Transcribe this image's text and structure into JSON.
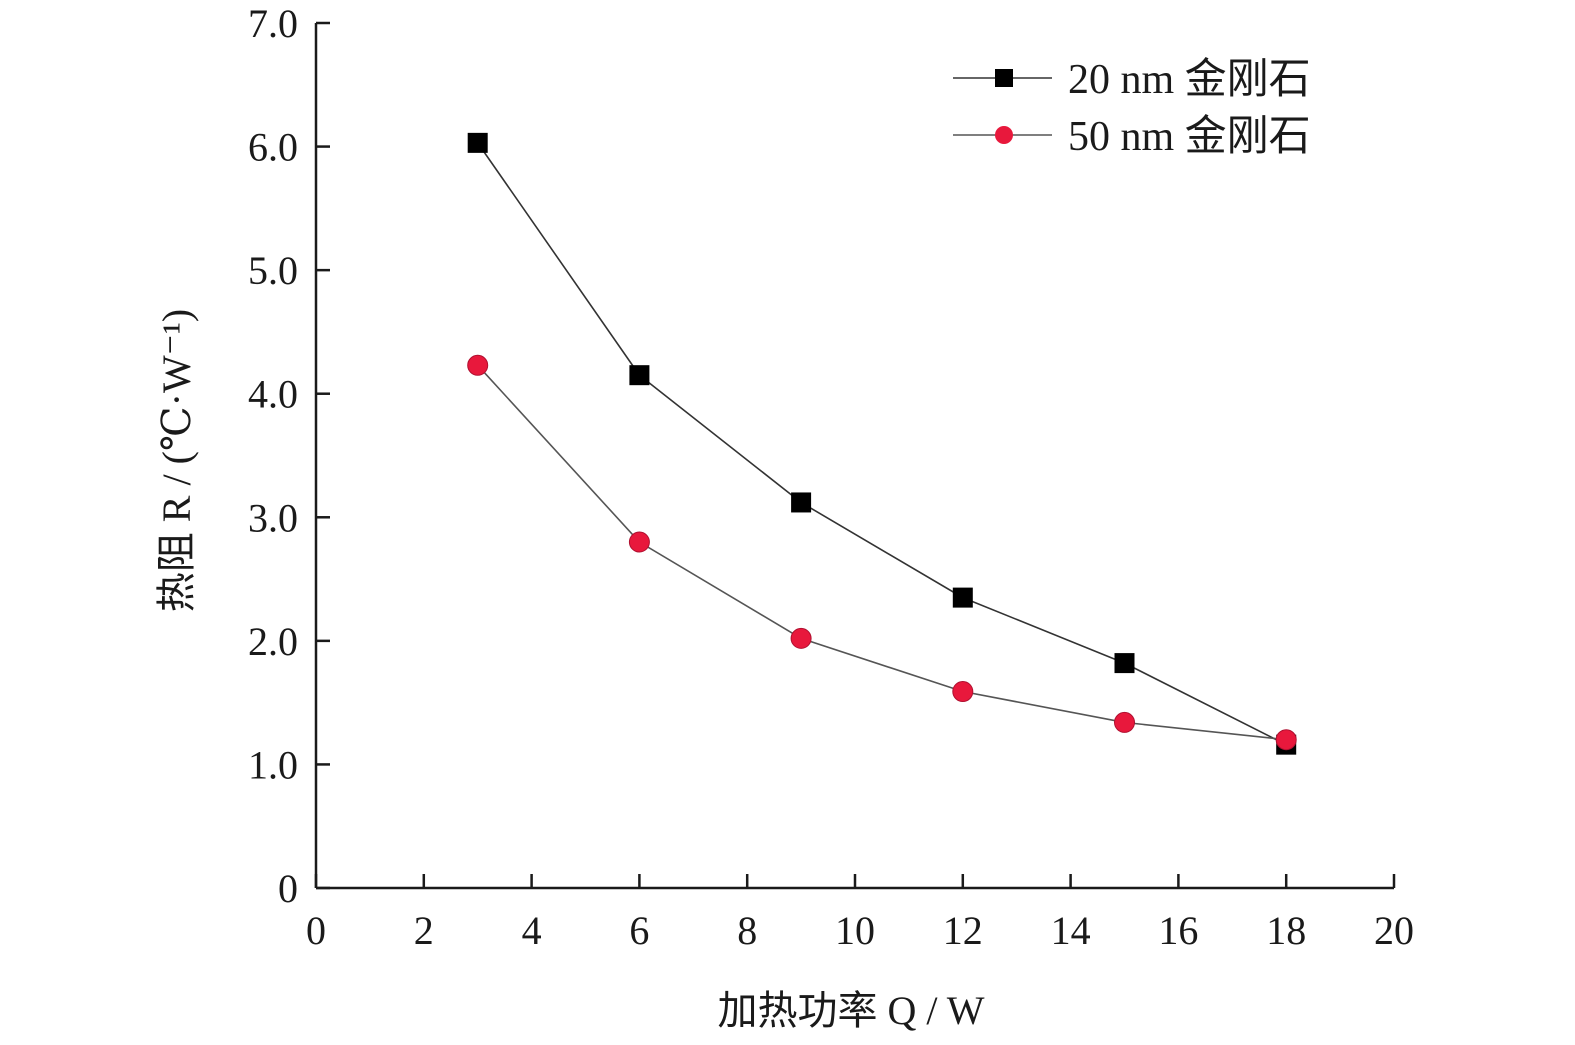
{
  "chart_data": {
    "type": "line",
    "xlabel": "加热功率 Q / W",
    "ylabel": "热阻 R / (℃·W⁻¹)",
    "xlim": [
      0,
      20
    ],
    "ylim": [
      0,
      7
    ],
    "x_ticks": [
      0,
      2,
      4,
      6,
      8,
      10,
      12,
      14,
      16,
      18,
      20
    ],
    "x_tick_labels": [
      "0",
      "2",
      "4",
      "6",
      "8",
      "10",
      "12",
      "14",
      "16",
      "18",
      "20"
    ],
    "y_ticks": [
      0,
      1,
      2,
      3,
      4,
      5,
      6,
      7
    ],
    "y_tick_labels": [
      "0",
      "1.0",
      "2.0",
      "3.0",
      "4.0",
      "5.0",
      "6.0",
      "7.0"
    ],
    "grid": false,
    "legend_position": "top-right",
    "x": [
      3,
      6,
      9,
      12,
      15,
      18
    ],
    "series": [
      {
        "name": "20 nm 金刚石",
        "values": [
          6.03,
          4.15,
          3.12,
          2.35,
          1.82,
          1.16
        ],
        "marker": "square",
        "color": "#000000",
        "line_color": "#333333"
      },
      {
        "name": "50 nm 金刚石",
        "values": [
          4.23,
          2.8,
          2.02,
          1.59,
          1.34,
          1.2
        ],
        "marker": "circle",
        "color": "#e8183c",
        "line_color": "#555555"
      }
    ]
  }
}
